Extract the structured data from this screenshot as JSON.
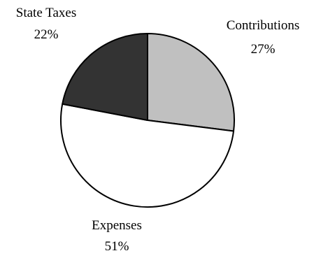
{
  "chart_data": {
    "type": "pie",
    "title": "",
    "start_angle_deg": 0,
    "direction": "clockwise",
    "slices": [
      {
        "label": "Contributions",
        "value": 27,
        "value_label": "27%",
        "color": "#c0c0c0"
      },
      {
        "label": "Expenses",
        "value": 51,
        "value_label": "51%",
        "color": "#ffffff"
      },
      {
        "label": "State Taxes",
        "value": 22,
        "value_label": "22%",
        "color": "#333333"
      }
    ],
    "stroke_color": "#000000",
    "legend": "none"
  }
}
